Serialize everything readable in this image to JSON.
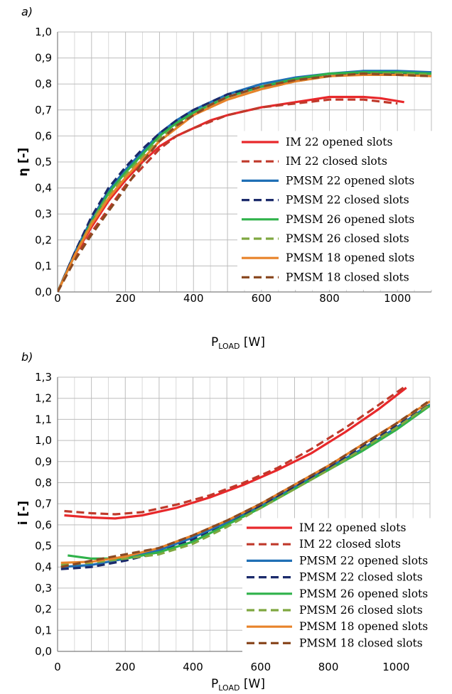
{
  "chart_data": [
    {
      "type": "line",
      "panel_label": "a)",
      "ylabel": "η [-]",
      "xlabel_main": "P",
      "xlabel_sub": "LOAD",
      "xlabel_unit": " [W]",
      "xlim": [
        0,
        1100
      ],
      "ylim": [
        0,
        1.0
      ],
      "x_ticks": [
        "0",
        "200",
        "400",
        "600",
        "800",
        "1000"
      ],
      "y_ticks": [
        "0,0",
        "0,1",
        "0,2",
        "0,3",
        "0,4",
        "0,5",
        "0,6",
        "0,7",
        "0,8",
        "0,9",
        "1,0"
      ],
      "grid": true,
      "legend": "right",
      "series": [
        {
          "name": "IM 22 opened slots",
          "color": "#e8282b",
          "dash": false,
          "points": [
            [
              0,
              0.0
            ],
            [
              50,
              0.14
            ],
            [
              100,
              0.25
            ],
            [
              150,
              0.35
            ],
            [
              200,
              0.43
            ],
            [
              250,
              0.5
            ],
            [
              300,
              0.56
            ],
            [
              350,
              0.6
            ],
            [
              400,
              0.63
            ],
            [
              450,
              0.66
            ],
            [
              500,
              0.68
            ],
            [
              600,
              0.71
            ],
            [
              700,
              0.73
            ],
            [
              800,
              0.75
            ],
            [
              900,
              0.75
            ],
            [
              950,
              0.745
            ],
            [
              1020,
              0.73
            ]
          ]
        },
        {
          "name": "IM 22 closed slots",
          "color": "#c0392b",
          "dash": true,
          "points": [
            [
              0,
              0.0
            ],
            [
              50,
              0.13
            ],
            [
              100,
              0.23
            ],
            [
              150,
              0.32
            ],
            [
              200,
              0.41
            ],
            [
              250,
              0.48
            ],
            [
              300,
              0.55
            ],
            [
              350,
              0.6
            ],
            [
              400,
              0.63
            ],
            [
              450,
              0.655
            ],
            [
              500,
              0.68
            ],
            [
              600,
              0.71
            ],
            [
              700,
              0.725
            ],
            [
              800,
              0.74
            ],
            [
              900,
              0.74
            ],
            [
              1000,
              0.725
            ]
          ]
        },
        {
          "name": "PMSM 22 opened slots",
          "color": "#1f6fb5",
          "dash": false,
          "points": [
            [
              0,
              0.0
            ],
            [
              50,
              0.15
            ],
            [
              100,
              0.28
            ],
            [
              150,
              0.39
            ],
            [
              200,
              0.47
            ],
            [
              250,
              0.54
            ],
            [
              300,
              0.61
            ],
            [
              350,
              0.66
            ],
            [
              400,
              0.7
            ],
            [
              450,
              0.73
            ],
            [
              500,
              0.76
            ],
            [
              600,
              0.8
            ],
            [
              700,
              0.825
            ],
            [
              800,
              0.84
            ],
            [
              900,
              0.85
            ],
            [
              1000,
              0.85
            ],
            [
              1100,
              0.845
            ]
          ]
        },
        {
          "name": "PMSM 22 closed slots",
          "color": "#1b2a6b",
          "dash": true,
          "points": [
            [
              0,
              0.0
            ],
            [
              50,
              0.15
            ],
            [
              100,
              0.29
            ],
            [
              150,
              0.4
            ],
            [
              200,
              0.48
            ],
            [
              250,
              0.55
            ],
            [
              300,
              0.61
            ],
            [
              350,
              0.66
            ],
            [
              400,
              0.7
            ],
            [
              450,
              0.73
            ],
            [
              500,
              0.76
            ],
            [
              600,
              0.79
            ],
            [
              700,
              0.815
            ],
            [
              800,
              0.83
            ],
            [
              900,
              0.84
            ],
            [
              1000,
              0.84
            ],
            [
              1100,
              0.84
            ]
          ]
        },
        {
          "name": "PMSM 26 opened slots",
          "color": "#2fb24a",
          "dash": false,
          "points": [
            [
              0,
              0.0
            ],
            [
              50,
              0.14
            ],
            [
              100,
              0.27
            ],
            [
              150,
              0.38
            ],
            [
              200,
              0.46
            ],
            [
              250,
              0.53
            ],
            [
              300,
              0.6
            ],
            [
              350,
              0.65
            ],
            [
              400,
              0.69
            ],
            [
              450,
              0.72
            ],
            [
              500,
              0.75
            ],
            [
              600,
              0.79
            ],
            [
              700,
              0.82
            ],
            [
              800,
              0.84
            ],
            [
              900,
              0.845
            ],
            [
              1000,
              0.845
            ],
            [
              1100,
              0.84
            ]
          ]
        },
        {
          "name": "PMSM 26 closed slots",
          "color": "#7fa840",
          "dash": true,
          "points": [
            [
              0,
              0.0
            ],
            [
              50,
              0.14
            ],
            [
              100,
              0.27
            ],
            [
              150,
              0.37
            ],
            [
              200,
              0.45
            ],
            [
              250,
              0.52
            ],
            [
              300,
              0.59
            ],
            [
              350,
              0.64
            ],
            [
              400,
              0.68
            ],
            [
              450,
              0.72
            ],
            [
              500,
              0.74
            ],
            [
              600,
              0.78
            ],
            [
              700,
              0.81
            ],
            [
              800,
              0.83
            ],
            [
              900,
              0.84
            ],
            [
              1000,
              0.84
            ],
            [
              1100,
              0.835
            ]
          ]
        },
        {
          "name": "PMSM 18 opened slots",
          "color": "#e8832a",
          "dash": false,
          "points": [
            [
              0,
              0.0
            ],
            [
              50,
              0.14
            ],
            [
              100,
              0.26
            ],
            [
              150,
              0.36
            ],
            [
              200,
              0.44
            ],
            [
              250,
              0.51
            ],
            [
              300,
              0.58
            ],
            [
              350,
              0.63
            ],
            [
              400,
              0.68
            ],
            [
              450,
              0.71
            ],
            [
              500,
              0.74
            ],
            [
              600,
              0.78
            ],
            [
              700,
              0.81
            ],
            [
              800,
              0.83
            ],
            [
              900,
              0.835
            ],
            [
              1000,
              0.835
            ],
            [
              1100,
              0.83
            ]
          ]
        },
        {
          "name": "PMSM 18 closed slots",
          "color": "#8b4a22",
          "dash": true,
          "points": [
            [
              0,
              0.0
            ],
            [
              50,
              0.12
            ],
            [
              100,
              0.22
            ],
            [
              150,
              0.31
            ],
            [
              200,
              0.4
            ],
            [
              250,
              0.5
            ],
            [
              300,
              0.58
            ],
            [
              350,
              0.64
            ],
            [
              400,
              0.68
            ],
            [
              450,
              0.72
            ],
            [
              500,
              0.75
            ],
            [
              600,
              0.79
            ],
            [
              700,
              0.815
            ],
            [
              800,
              0.83
            ],
            [
              900,
              0.84
            ],
            [
              1000,
              0.835
            ],
            [
              1100,
              0.83
            ]
          ]
        }
      ]
    },
    {
      "type": "line",
      "panel_label": "b)",
      "ylabel": "i [-]",
      "xlabel_main": "P",
      "xlabel_sub": "LOAD",
      "xlabel_unit": " [W]",
      "xlim": [
        0,
        1100
      ],
      "ylim": [
        0,
        1.3
      ],
      "x_ticks": [
        "0",
        "200",
        "400",
        "600",
        "800",
        "1000"
      ],
      "y_ticks": [
        "0,0",
        "0,1",
        "0,2",
        "0,3",
        "0,4",
        "0,5",
        "0,6",
        "0,7",
        "0,8",
        "0,9",
        "1,0",
        "1,1",
        "1,2",
        "1,3"
      ],
      "grid": true,
      "legend": "bottom-right",
      "series": [
        {
          "name": "IM 22 opened slots",
          "color": "#e8282b",
          "dash": false,
          "points": [
            [
              20,
              0.645
            ],
            [
              100,
              0.635
            ],
            [
              170,
              0.63
            ],
            [
              250,
              0.645
            ],
            [
              350,
              0.68
            ],
            [
              450,
              0.73
            ],
            [
              550,
              0.79
            ],
            [
              650,
              0.86
            ],
            [
              750,
              0.94
            ],
            [
              850,
              1.04
            ],
            [
              950,
              1.15
            ],
            [
              1030,
              1.25
            ]
          ]
        },
        {
          "name": "IM 22 closed slots",
          "color": "#c0392b",
          "dash": true,
          "points": [
            [
              20,
              0.665
            ],
            [
              100,
              0.655
            ],
            [
              170,
              0.65
            ],
            [
              250,
              0.66
            ],
            [
              350,
              0.695
            ],
            [
              450,
              0.74
            ],
            [
              550,
              0.8
            ],
            [
              650,
              0.87
            ],
            [
              750,
              0.96
            ],
            [
              850,
              1.06
            ],
            [
              950,
              1.17
            ],
            [
              1030,
              1.26
            ]
          ]
        },
        {
          "name": "PMSM 22 opened slots",
          "color": "#1f6fb5",
          "dash": false,
          "points": [
            [
              10,
              0.4
            ],
            [
              100,
              0.41
            ],
            [
              200,
              0.44
            ],
            [
              300,
              0.48
            ],
            [
              400,
              0.54
            ],
            [
              500,
              0.61
            ],
            [
              600,
              0.69
            ],
            [
              700,
              0.78
            ],
            [
              800,
              0.87
            ],
            [
              900,
              0.96
            ],
            [
              1000,
              1.06
            ],
            [
              1100,
              1.17
            ]
          ]
        },
        {
          "name": "PMSM 22 closed slots",
          "color": "#1b2a6b",
          "dash": true,
          "points": [
            [
              10,
              0.39
            ],
            [
              100,
              0.4
            ],
            [
              200,
              0.43
            ],
            [
              300,
              0.47
            ],
            [
              400,
              0.53
            ],
            [
              500,
              0.6
            ],
            [
              600,
              0.69
            ],
            [
              700,
              0.78
            ],
            [
              800,
              0.87
            ],
            [
              900,
              0.97
            ],
            [
              1000,
              1.07
            ],
            [
              1100,
              1.18
            ]
          ]
        },
        {
          "name": "PMSM 26 opened slots",
          "color": "#2fb24a",
          "dash": false,
          "points": [
            [
              30,
              0.455
            ],
            [
              100,
              0.44
            ],
            [
              200,
              0.44
            ],
            [
              300,
              0.47
            ],
            [
              400,
              0.52
            ],
            [
              500,
              0.6
            ],
            [
              600,
              0.68
            ],
            [
              700,
              0.77
            ],
            [
              800,
              0.86
            ],
            [
              900,
              0.95
            ],
            [
              1000,
              1.05
            ],
            [
              1100,
              1.165
            ]
          ]
        },
        {
          "name": "PMSM 26 closed slots",
          "color": "#7fa840",
          "dash": true,
          "points": [
            [
              10,
              0.41
            ],
            [
              100,
              0.42
            ],
            [
              200,
              0.44
            ],
            [
              300,
              0.46
            ],
            [
              400,
              0.51
            ],
            [
              500,
              0.59
            ],
            [
              600,
              0.68
            ],
            [
              700,
              0.77
            ],
            [
              800,
              0.86
            ],
            [
              900,
              0.96
            ],
            [
              1000,
              1.06
            ],
            [
              1100,
              1.17
            ]
          ]
        },
        {
          "name": "PMSM 18 opened slots",
          "color": "#e8832a",
          "dash": false,
          "points": [
            [
              10,
              0.42
            ],
            [
              100,
              0.425
            ],
            [
              200,
              0.45
            ],
            [
              300,
              0.49
            ],
            [
              400,
              0.55
            ],
            [
              500,
              0.62
            ],
            [
              600,
              0.7
            ],
            [
              700,
              0.79
            ],
            [
              800,
              0.88
            ],
            [
              900,
              0.98
            ],
            [
              1000,
              1.08
            ],
            [
              1100,
              1.185
            ]
          ]
        },
        {
          "name": "PMSM 18 closed slots",
          "color": "#8b4a22",
          "dash": true,
          "points": [
            [
              10,
              0.4
            ],
            [
              100,
              0.43
            ],
            [
              200,
              0.46
            ],
            [
              300,
              0.49
            ],
            [
              400,
              0.55
            ],
            [
              500,
              0.62
            ],
            [
              600,
              0.7
            ],
            [
              700,
              0.79
            ],
            [
              800,
              0.88
            ],
            [
              900,
              0.98
            ],
            [
              1000,
              1.08
            ],
            [
              1100,
              1.19
            ]
          ]
        }
      ]
    }
  ]
}
